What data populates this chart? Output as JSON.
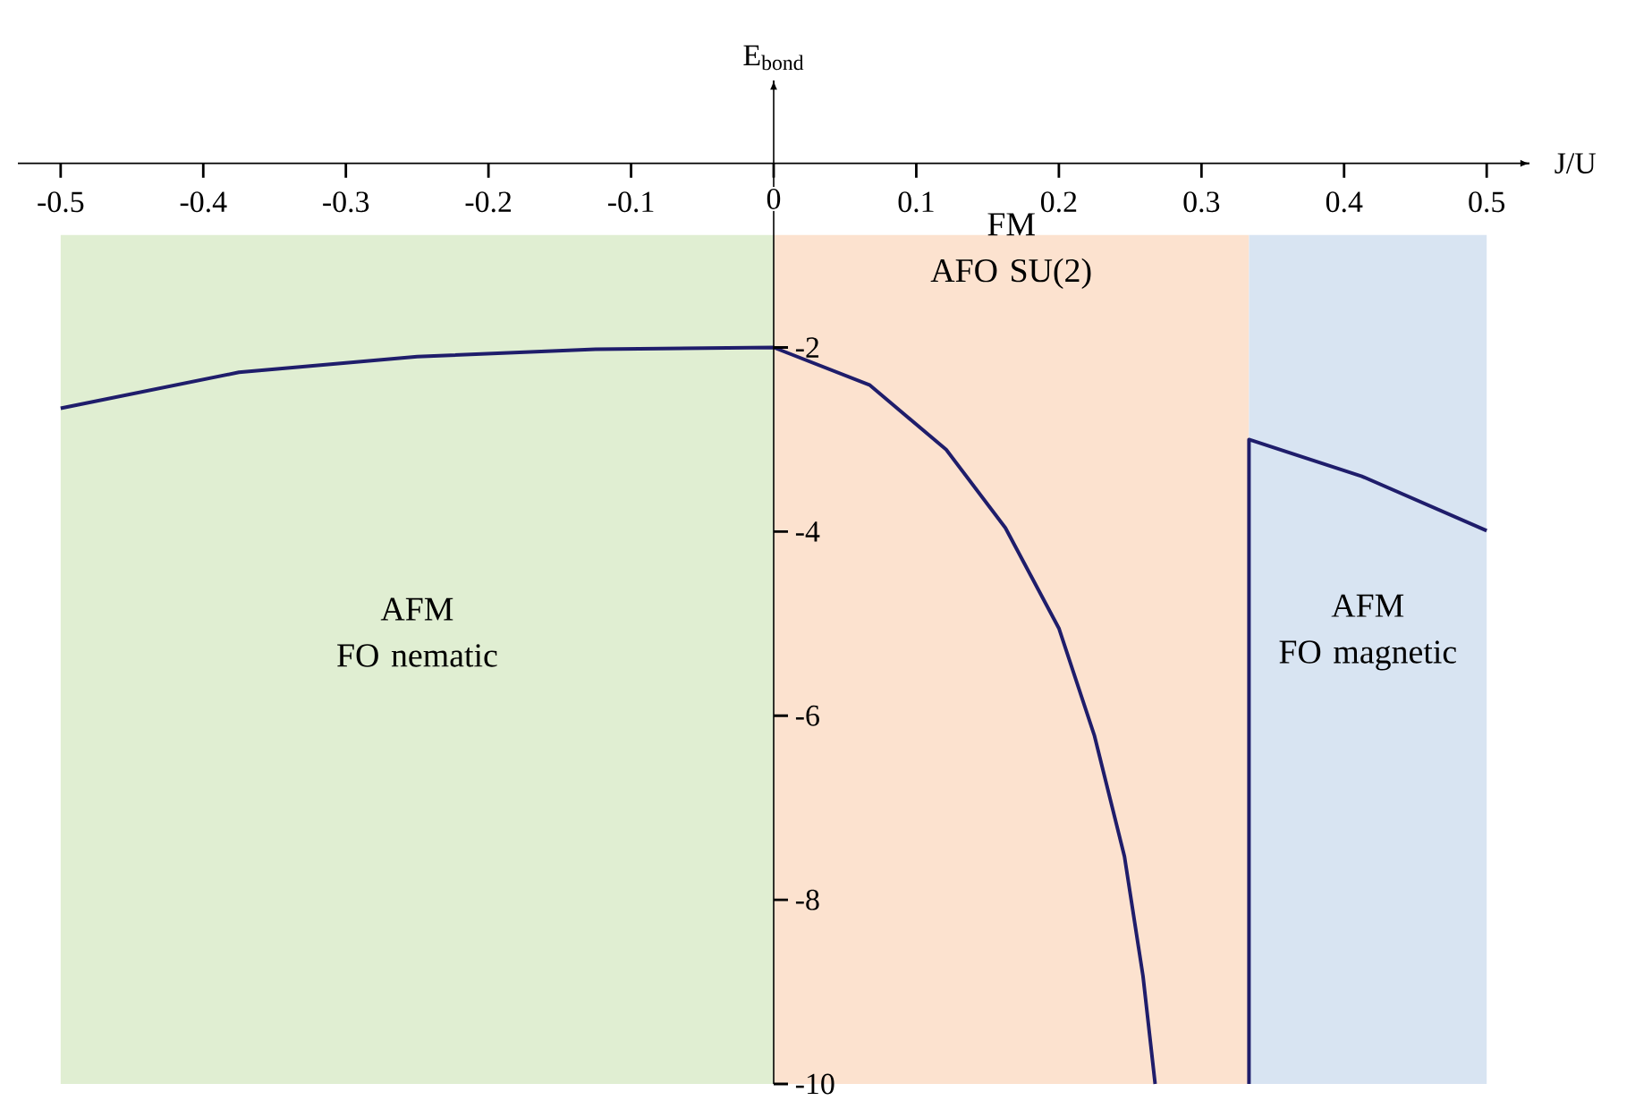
{
  "chart_data": {
    "type": "line",
    "xlabel": "J/U",
    "ylabel": "E$_{bond}$",
    "xlim": [
      -0.53,
      0.53
    ],
    "ylim": [
      -10,
      0.9
    ],
    "xticks": [
      -0.5,
      -0.4,
      -0.3,
      -0.2,
      -0.1,
      0,
      0.1,
      0.2,
      0.3,
      0.4,
      0.5
    ],
    "yticks": [
      -2,
      -4,
      -6,
      -8,
      -10
    ],
    "series": [
      {
        "color": "#1f1d6b",
        "x": [
          -0.5,
          -0.375,
          -0.25,
          -0.125,
          0,
          0.0675,
          0.121,
          0.1625,
          0.2,
          0.225,
          0.246,
          0.259,
          0.2675
        ],
        "values": [
          -2.66,
          -2.27,
          -2.1,
          -2.02,
          -2,
          -2.41,
          -3.11,
          -3.96,
          -5.05,
          -6.22,
          -7.53,
          -8.83,
          -10
        ]
      },
      {
        "color": "#1f1d6b",
        "x": [
          0.3333,
          0.3333,
          0.4125,
          0.5
        ],
        "values": [
          -10,
          -3,
          -3.4,
          -3.99
        ]
      }
    ],
    "bands": [
      {
        "axis": "x",
        "from": -0.5,
        "to": 0,
        "label": "AFM\nFO nematic",
        "color": "#e0eed2"
      },
      {
        "axis": "x",
        "from": 0,
        "to": 0.3333,
        "label": "FM\nAFO SU(2)",
        "color": "#fce2cf"
      },
      {
        "axis": "x",
        "from": 0.3333,
        "to": 0.5,
        "label": "AFM\nFO magnetic",
        "color": "#d8e4f2"
      }
    ],
    "grid": false
  }
}
